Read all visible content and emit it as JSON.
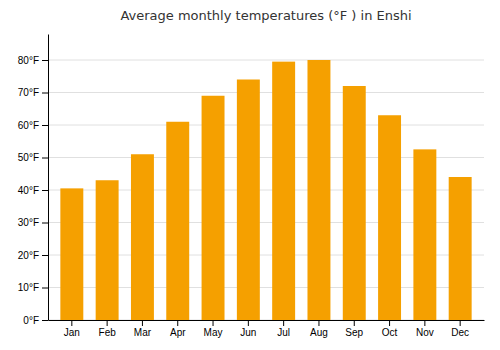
{
  "chart_data": {
    "type": "bar",
    "title": "Average monthly temperatures (°F ) in Enshi",
    "categories": [
      "Jan",
      "Feb",
      "Mar",
      "Apr",
      "May",
      "Jun",
      "Jul",
      "Aug",
      "Sep",
      "Oct",
      "Nov",
      "Dec"
    ],
    "values": [
      40.5,
      43.0,
      51.0,
      61.0,
      69.0,
      74.0,
      79.5,
      80.0,
      72.0,
      63.0,
      52.5,
      44.0
    ],
    "color": "#F5A000",
    "ylim": [
      0,
      88
    ],
    "yticks": [
      {
        "value": 0,
        "label": "0°F"
      },
      {
        "value": 10,
        "label": "10°F"
      },
      {
        "value": 20,
        "label": "20°F"
      },
      {
        "value": 30,
        "label": "30°F"
      },
      {
        "value": 40,
        "label": "40°F"
      },
      {
        "value": 50,
        "label": "50°F"
      },
      {
        "value": 60,
        "label": "60°F"
      },
      {
        "value": 70,
        "label": "70°F"
      },
      {
        "value": 80,
        "label": "80°F"
      }
    ],
    "grid": true
  }
}
